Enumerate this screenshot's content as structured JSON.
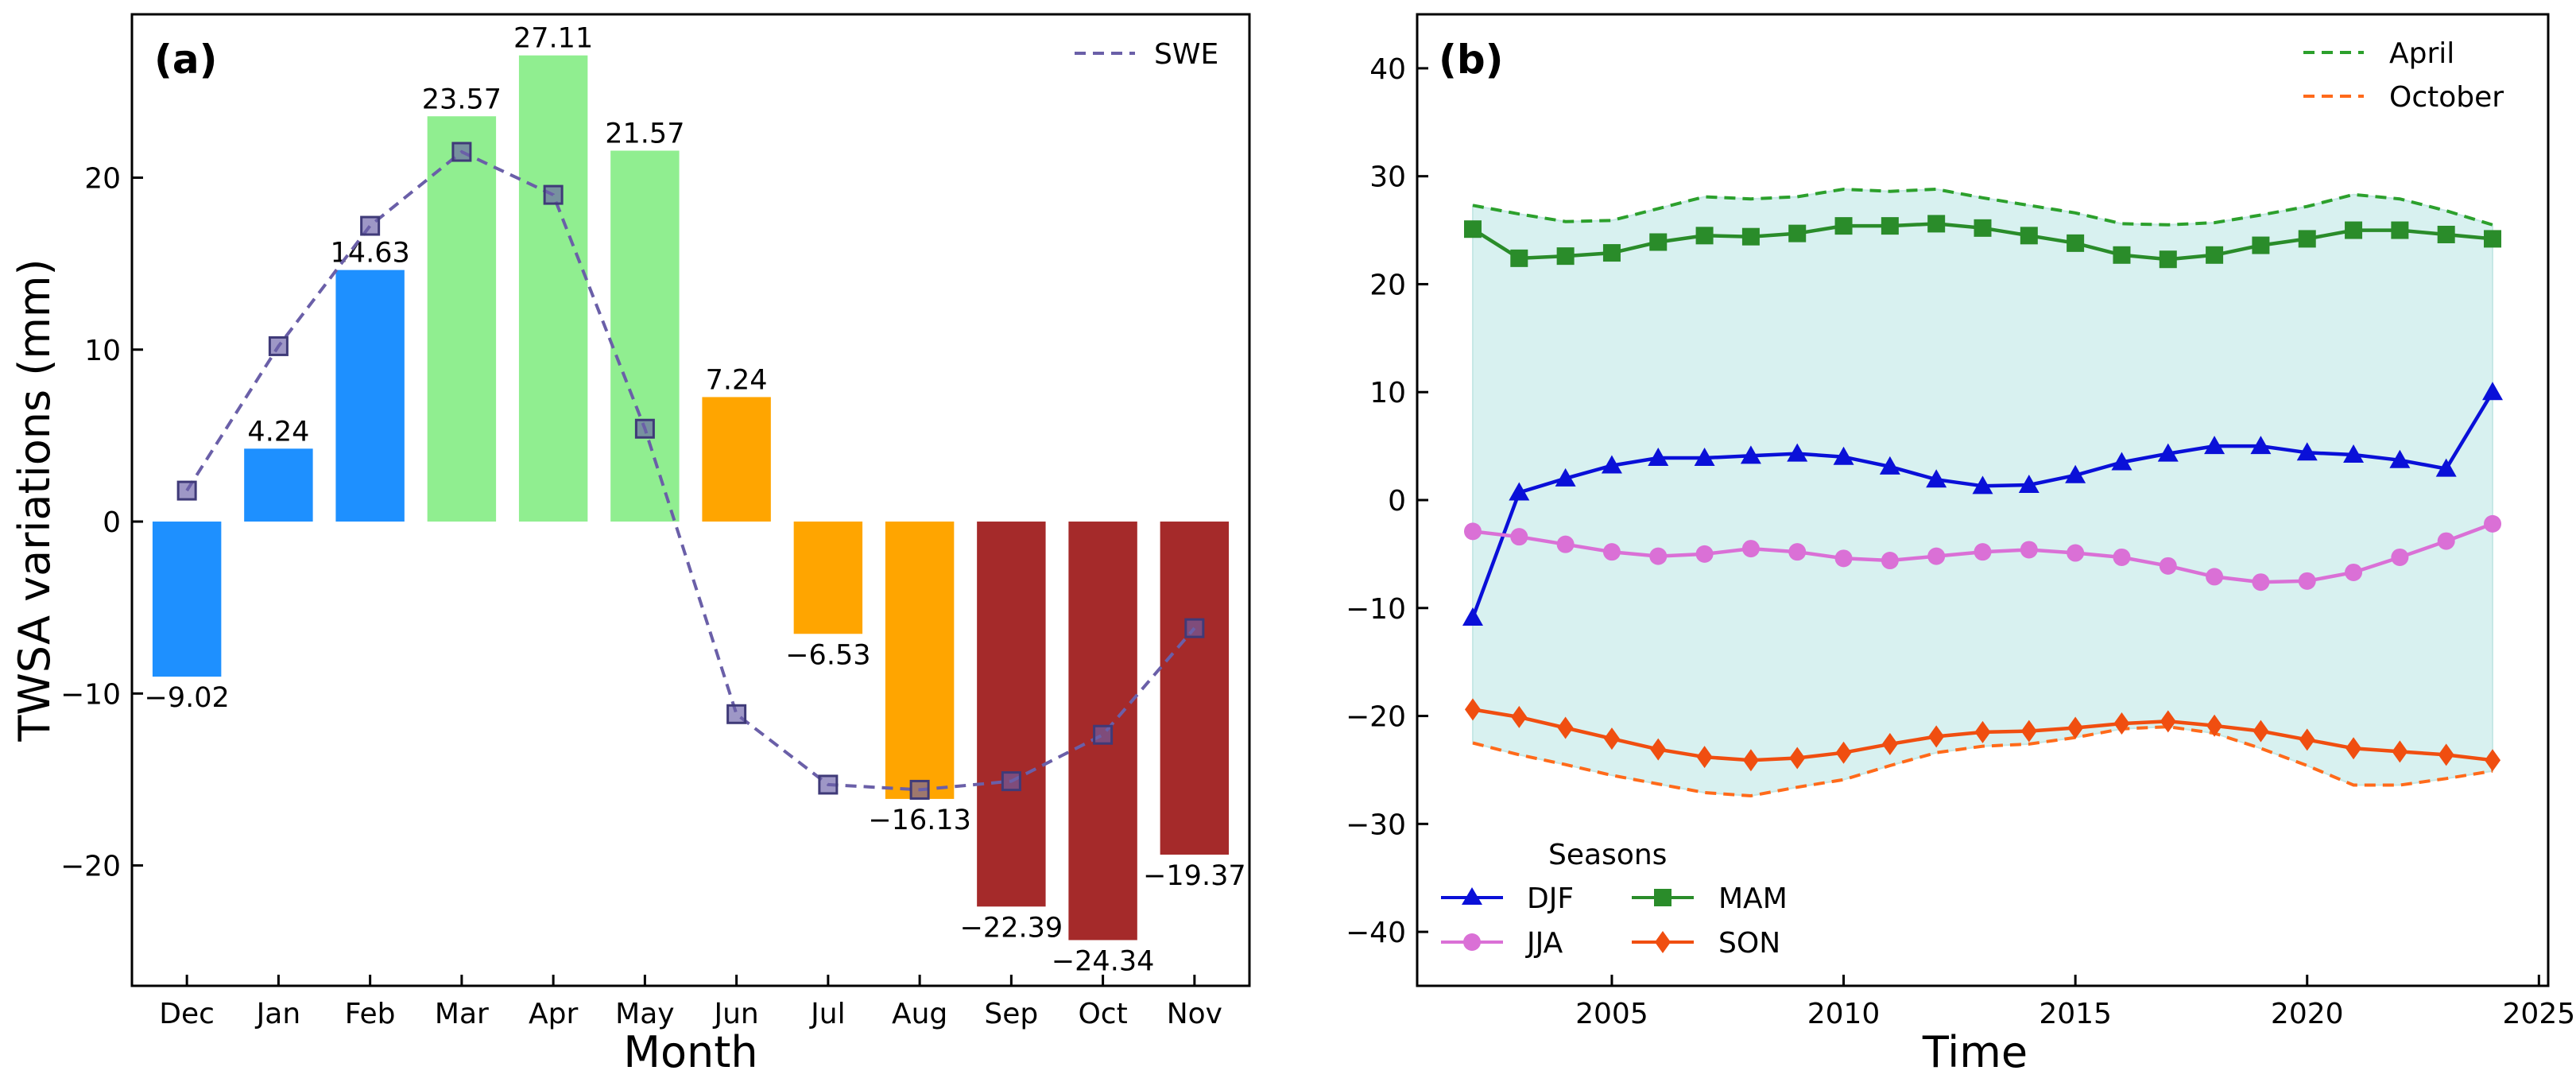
{
  "chart_data": [
    {
      "id": "a",
      "type": "bar",
      "panel_label": "(a)",
      "xlabel": "Month",
      "ylabel": "TWSA variations (mm)",
      "categories": [
        "Dec",
        "Jan",
        "Feb",
        "Mar",
        "Apr",
        "May",
        "Jun",
        "Jul",
        "Aug",
        "Sep",
        "Oct",
        "Nov"
      ],
      "values": [
        -9.02,
        4.24,
        14.63,
        23.57,
        27.11,
        21.57,
        7.24,
        -6.53,
        -16.13,
        -22.39,
        -24.34,
        -19.37
      ],
      "value_labels": [
        "−9.02",
        "4.24",
        "14.63",
        "23.57",
        "27.11",
        "21.57",
        "7.24",
        "−6.53",
        "−16.13",
        "−22.39",
        "−24.34",
        "−19.37"
      ],
      "bar_colors": [
        "#1e90ff",
        "#1e90ff",
        "#1e90ff",
        "#90ee90",
        "#90ee90",
        "#90ee90",
        "#ffa500",
        "#ffa500",
        "#ffa500",
        "#a52a2a",
        "#a52a2a",
        "#a52a2a"
      ],
      "ylim": [
        -27,
        29.5
      ],
      "yticks": [
        -20,
        -10,
        0,
        10,
        20
      ],
      "ytick_labels": [
        "−20",
        "−10",
        "0",
        "10",
        "20"
      ],
      "series": [
        {
          "name": "SWE",
          "style": "dashed",
          "marker": "square",
          "color": "#6a5fa8",
          "values": [
            1.8,
            10.2,
            17.2,
            21.5,
            19.0,
            5.4,
            -11.2,
            -15.3,
            -15.6,
            -15.1,
            -12.4,
            -6.2
          ]
        }
      ],
      "legend": {
        "position": "top-right",
        "entries": [
          "SWE"
        ]
      }
    },
    {
      "id": "b",
      "type": "line",
      "panel_label": "(b)",
      "xlabel": "Time",
      "ylabel": "",
      "xlim": [
        2000.8,
        2025.2
      ],
      "ylim": [
        -45,
        45
      ],
      "xticks": [
        2005,
        2010,
        2015,
        2020,
        2025
      ],
      "xtick_labels": [
        "2005",
        "2010",
        "2015",
        "2020",
        "2025"
      ],
      "yticks": [
        -40,
        -30,
        -20,
        -10,
        0,
        10,
        20,
        30,
        40
      ],
      "ytick_labels": [
        "−40",
        "−30",
        "−20",
        "−10",
        "0",
        "10",
        "20",
        "30",
        "40"
      ],
      "x": [
        2002,
        2003,
        2004,
        2005,
        2006,
        2007,
        2008,
        2009,
        2010,
        2011,
        2012,
        2013,
        2014,
        2015,
        2016,
        2017,
        2018,
        2019,
        2020,
        2021,
        2022,
        2023,
        2024
      ],
      "fill_between": [
        "April",
        "October"
      ],
      "fill_color": "#d8f1f0",
      "series": [
        {
          "name": "April",
          "style": "dashed",
          "color": "#2ca02c",
          "values": [
            27.3,
            26.5,
            25.8,
            25.9,
            27.0,
            28.1,
            27.9,
            28.1,
            28.8,
            28.6,
            28.8,
            28.0,
            27.3,
            26.6,
            25.6,
            25.5,
            25.7,
            26.4,
            27.2,
            28.3,
            27.9,
            26.8,
            25.5
          ]
        },
        {
          "name": "October",
          "style": "dashed",
          "color": "#ff6a1a",
          "values": [
            -22.5,
            -23.6,
            -24.5,
            -25.5,
            -26.3,
            -27.1,
            -27.4,
            -26.6,
            -25.9,
            -24.6,
            -23.4,
            -22.8,
            -22.6,
            -22.0,
            -21.2,
            -21.0,
            -21.6,
            -23.0,
            -24.6,
            -26.4,
            -26.4,
            -25.8,
            -25.1
          ]
        },
        {
          "name": "DJF",
          "style": "solid",
          "marker": "triangle",
          "color": "#0a10d8",
          "values": [
            -10.9,
            0.7,
            2.0,
            3.2,
            3.9,
            3.9,
            4.1,
            4.3,
            4.0,
            3.1,
            1.9,
            1.3,
            1.4,
            2.3,
            3.5,
            4.3,
            5.0,
            5.0,
            4.4,
            4.2,
            3.7,
            2.9,
            10.0
          ]
        },
        {
          "name": "MAM",
          "style": "solid",
          "marker": "square",
          "color": "#2a8c2a",
          "values": [
            25.1,
            22.4,
            22.6,
            22.9,
            23.9,
            24.5,
            24.4,
            24.7,
            25.4,
            25.4,
            25.6,
            25.2,
            24.5,
            23.8,
            22.7,
            22.3,
            22.7,
            23.6,
            24.2,
            25.0,
            25.0,
            24.6,
            24.2
          ]
        },
        {
          "name": "JJA",
          "style": "solid",
          "marker": "circle",
          "color": "#da70d6",
          "values": [
            -2.9,
            -3.4,
            -4.1,
            -4.8,
            -5.2,
            -5.0,
            -4.5,
            -4.8,
            -5.4,
            -5.6,
            -5.2,
            -4.8,
            -4.6,
            -4.9,
            -5.3,
            -6.1,
            -7.1,
            -7.6,
            -7.5,
            -6.7,
            -5.3,
            -3.8,
            -2.2
          ]
        },
        {
          "name": "SON",
          "style": "solid",
          "marker": "diamond",
          "color": "#f04e10",
          "values": [
            -19.4,
            -20.1,
            -21.1,
            -22.1,
            -23.1,
            -23.8,
            -24.1,
            -23.9,
            -23.4,
            -22.6,
            -21.9,
            -21.5,
            -21.4,
            -21.1,
            -20.7,
            -20.5,
            -20.9,
            -21.4,
            -22.2,
            -23.0,
            -23.3,
            -23.6,
            -24.1
          ]
        }
      ],
      "legend_top": {
        "position": "top-right",
        "entries": [
          "April",
          "October"
        ]
      },
      "legend_bottom": {
        "position": "bottom-left",
        "title": "Seasons",
        "entries": [
          "DJF",
          "MAM",
          "JJA",
          "SON"
        ]
      }
    }
  ]
}
